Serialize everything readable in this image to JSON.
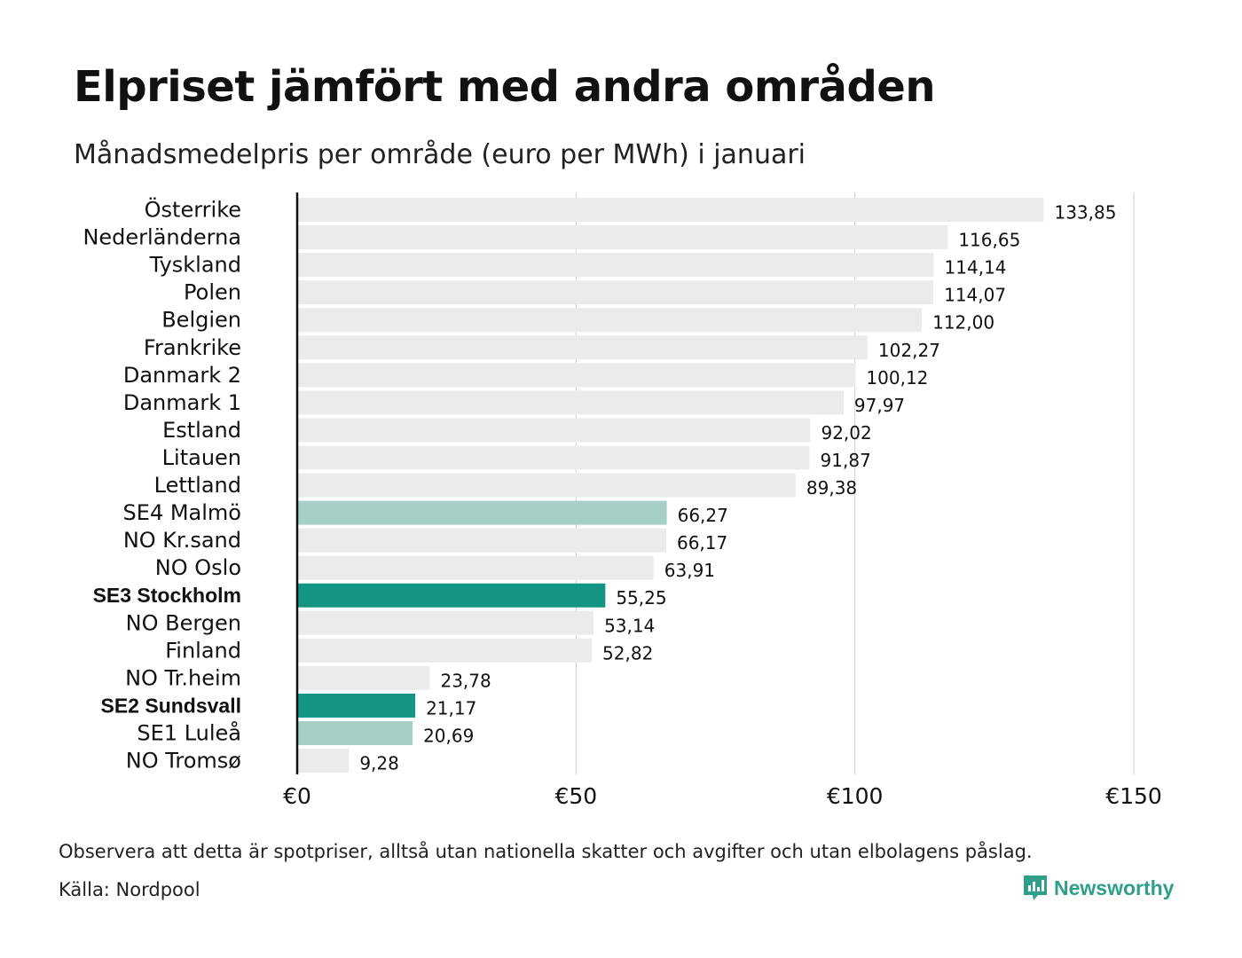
{
  "title": "Elpriset jämfört med andra områden",
  "subtitle": "Månadsmedelpris per område (euro per MWh) i januari",
  "footer": {
    "note": "Observera att detta är spotpriser, alltså utan nationella skatter och avgifter och utan elbolagens påslag.",
    "source": "Källa: Nordpool",
    "brand": "Newsworthy"
  },
  "colors": {
    "default_bar": "#ebebeb",
    "light_teal_bar": "#a6cfc6",
    "teal_bar": "#149584",
    "axis_line": "#111111",
    "grid": "#cfcfcf",
    "brand": "#2f9e8a"
  },
  "icons": {
    "brand_logo": "newsworthy-logo-icon"
  },
  "chart_data": {
    "type": "bar",
    "orientation": "horizontal",
    "title": "Elpriset jämfört med andra områden",
    "subtitle": "Månadsmedelpris per område (euro per MWh) i januari",
    "xlim": [
      0,
      150
    ],
    "x_ticks": [
      0,
      50,
      100,
      150
    ],
    "x_tick_labels": [
      "€0",
      "€50",
      "€100",
      "€150"
    ],
    "grid": "vertical",
    "legend": "none",
    "categories": [
      "Österrike",
      "Nederländerna",
      "Tyskland",
      "Polen",
      "Belgien",
      "Frankrike",
      "Danmark  2",
      "Danmark  1",
      "Estland",
      "Litauen",
      "Lettland",
      "SE4  Malmö",
      "NO Kr.sand",
      "NO Oslo",
      "SE3 Stockholm",
      "NO Bergen",
      "Finland",
      "NO Tr.heim",
      "SE2 Sundsvall",
      "SE1  Luleå",
      "NO Tromsø"
    ],
    "values": [
      133.85,
      116.65,
      114.14,
      114.07,
      112.0,
      102.27,
      100.12,
      97.97,
      92.02,
      91.87,
      89.38,
      66.27,
      66.17,
      63.91,
      55.25,
      53.14,
      52.82,
      23.78,
      21.17,
      20.69,
      9.28
    ],
    "value_labels": [
      "133,85",
      "116,65",
      "114,14",
      "114,07",
      "112,00",
      "102,27",
      "100,12",
      "97,97",
      "92,02",
      "91,87",
      "89,38",
      "66,27",
      "66,17",
      "63,91",
      "55,25",
      "53,14",
      "52,82",
      "23,78",
      "21,17",
      "20,69",
      "9,28"
    ],
    "highlight": [
      "default",
      "default",
      "default",
      "default",
      "default",
      "default",
      "default",
      "default",
      "default",
      "default",
      "default",
      "light",
      "default",
      "default",
      "strong",
      "default",
      "default",
      "default",
      "strong",
      "light",
      "default"
    ],
    "bold_labels": [
      "SE3 Stockholm",
      "SE2 Sundsvall"
    ]
  }
}
